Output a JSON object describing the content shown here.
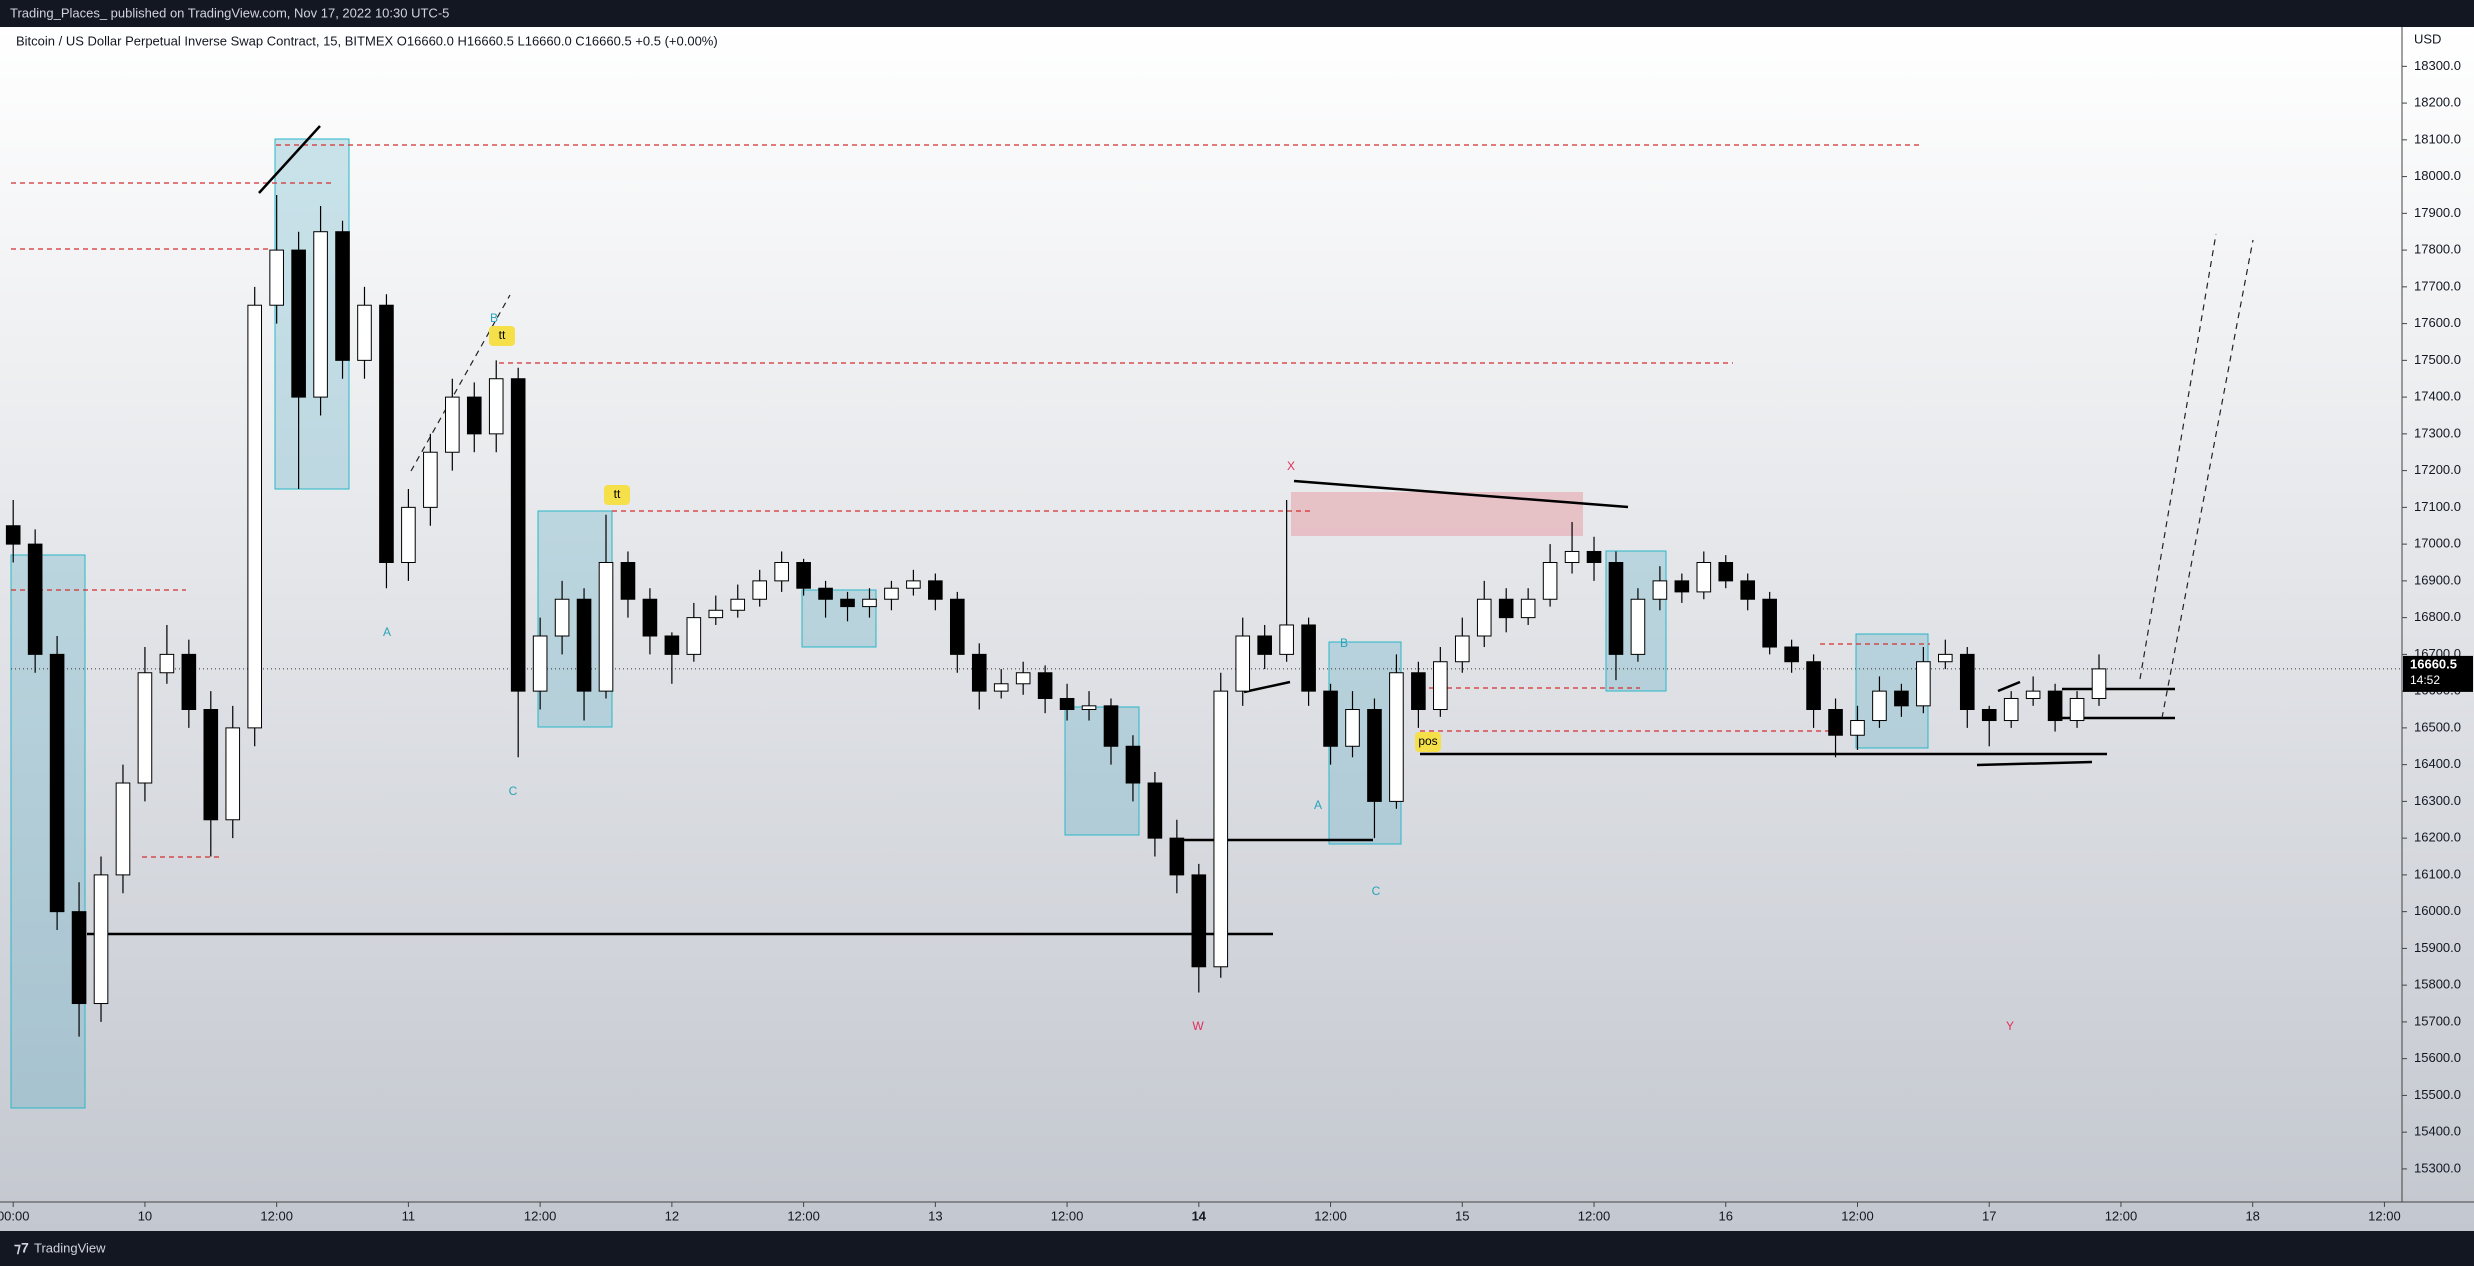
{
  "header": {
    "publisher": "Trading_Places_ published on TradingView.com, Nov 17, 2022 10:30 UTC-5"
  },
  "chart_data": {
    "type": "candlestick",
    "legend_text": "Bitcoin / US Dollar Perpetual Inverse Swap Contract, 15, BITMEX  O16660.0  H16660.5  L16660.0  C16660.5  +0.5 (+0.00%)",
    "currency": "USD",
    "last_price_label": "16660.5",
    "countdown": "14:52",
    "up_color": "#ffffff",
    "down_color": "#000000",
    "grid": false,
    "xlim": [
      -0.2,
      217.6
    ],
    "ylim": [
      15210,
      18407
    ],
    "xticks": [
      {
        "value": 0,
        "label": "00:00"
      },
      {
        "value": 12,
        "label": "10"
      },
      {
        "value": 24,
        "label": "12:00"
      },
      {
        "value": 36,
        "label": "11"
      },
      {
        "value": 48,
        "label": "12:00"
      },
      {
        "value": 60,
        "label": "12"
      },
      {
        "value": 72,
        "label": "12:00"
      },
      {
        "value": 84,
        "label": "13"
      },
      {
        "value": 96,
        "label": "12:00"
      },
      {
        "value": 108,
        "label": "14"
      },
      {
        "value": 120,
        "label": "12:00"
      },
      {
        "value": 132,
        "label": "15"
      },
      {
        "value": 144,
        "label": "12:00"
      },
      {
        "value": 156,
        "label": "16"
      },
      {
        "value": 168,
        "label": "12:00"
      },
      {
        "value": 180,
        "label": "17"
      },
      {
        "value": 192,
        "label": "12:00"
      },
      {
        "value": 204,
        "label": "18"
      },
      {
        "value": 216,
        "label": "12:00"
      }
    ],
    "yticks": [
      {
        "value": 15300,
        "label": "15300.0"
      },
      {
        "value": 15400,
        "label": "15400.0"
      },
      {
        "value": 15500,
        "label": "15500.0"
      },
      {
        "value": 15600,
        "label": "15600.0"
      },
      {
        "value": 15700,
        "label": "15700.0"
      },
      {
        "value": 15800,
        "label": "15800.0"
      },
      {
        "value": 15900,
        "label": "15900.0"
      },
      {
        "value": 16000,
        "label": "16000.0"
      },
      {
        "value": 16100,
        "label": "16100.0"
      },
      {
        "value": 16200,
        "label": "16200.0"
      },
      {
        "value": 16300,
        "label": "16300.0"
      },
      {
        "value": 16400,
        "label": "16400.0"
      },
      {
        "value": 16500,
        "label": "16500.0"
      },
      {
        "value": 16600,
        "label": "16600.0"
      },
      {
        "value": 16700,
        "label": "16700.0"
      },
      {
        "value": 16800,
        "label": "16800.0"
      },
      {
        "value": 16900,
        "label": "16900.0"
      },
      {
        "value": 17000,
        "label": "17000.0"
      },
      {
        "value": 17100,
        "label": "17100.0"
      },
      {
        "value": 17200,
        "label": "17200.0"
      },
      {
        "value": 17300,
        "label": "17300.0"
      },
      {
        "value": 17400,
        "label": "17400.0"
      },
      {
        "value": 17500,
        "label": "17500.0"
      },
      {
        "value": 17600,
        "label": "17600.0"
      },
      {
        "value": 17700,
        "label": "17700.0"
      },
      {
        "value": 17800,
        "label": "17800.0"
      },
      {
        "value": 17900,
        "label": "17900.0"
      },
      {
        "value": 18000,
        "label": "18000.0"
      },
      {
        "value": 18100,
        "label": "18100.0"
      },
      {
        "value": 18200,
        "label": "18200.0"
      },
      {
        "value": 18300,
        "label": "18300.0"
      }
    ],
    "x": [
      0,
      2,
      4,
      6,
      8,
      10,
      12,
      14,
      16,
      18,
      20,
      22,
      24,
      26,
      28,
      30,
      32,
      34,
      36,
      38,
      40,
      42,
      44,
      46,
      48,
      50,
      52,
      54,
      56,
      58,
      60,
      62,
      64,
      66,
      68,
      70,
      72,
      74,
      76,
      78,
      80,
      82,
      84,
      86,
      88,
      90,
      92,
      94,
      96,
      98,
      100,
      102,
      104,
      106,
      108,
      110,
      112,
      114,
      116,
      118,
      120,
      122,
      124,
      126,
      128,
      130,
      132,
      134,
      136,
      138,
      140,
      142,
      144,
      146,
      148,
      150,
      152,
      154,
      156,
      158,
      160,
      162,
      164,
      166,
      168,
      170,
      172,
      174,
      176,
      178,
      180,
      182,
      184,
      186,
      188,
      190
    ],
    "candles": [
      [
        17050,
        17120,
        16950,
        17000
      ],
      [
        17000,
        17040,
        16650,
        16700
      ],
      [
        16700,
        16750,
        15950,
        16000
      ],
      [
        16000,
        16080,
        15660,
        15750
      ],
      [
        15750,
        16150,
        15700,
        16100
      ],
      [
        16100,
        16400,
        16050,
        16350
      ],
      [
        16350,
        16720,
        16300,
        16650
      ],
      [
        16650,
        16780,
        16620,
        16700
      ],
      [
        16700,
        16740,
        16500,
        16550
      ],
      [
        16550,
        16600,
        16150,
        16250
      ],
      [
        16250,
        16560,
        16200,
        16500
      ],
      [
        16500,
        17700,
        16450,
        17650
      ],
      [
        17650,
        17950,
        17600,
        17800
      ],
      [
        17800,
        17850,
        17150,
        17400
      ],
      [
        17400,
        17920,
        17350,
        17850
      ],
      [
        17850,
        17880,
        17450,
        17500
      ],
      [
        17500,
        17700,
        17450,
        17650
      ],
      [
        17650,
        17680,
        16880,
        16950
      ],
      [
        16950,
        17150,
        16900,
        17100
      ],
      [
        17100,
        17300,
        17050,
        17250
      ],
      [
        17250,
        17450,
        17200,
        17400
      ],
      [
        17400,
        17440,
        17250,
        17300
      ],
      [
        17300,
        17500,
        17250,
        17450
      ],
      [
        17450,
        17480,
        16420,
        16600
      ],
      [
        16600,
        16800,
        16550,
        16750
      ],
      [
        16750,
        16900,
        16700,
        16850
      ],
      [
        16850,
        16880,
        16520,
        16600
      ],
      [
        16600,
        17080,
        16580,
        16950
      ],
      [
        16950,
        16980,
        16800,
        16850
      ],
      [
        16850,
        16880,
        16700,
        16750
      ],
      [
        16750,
        16760,
        16620,
        16700
      ],
      [
        16700,
        16840,
        16680,
        16800
      ],
      [
        16800,
        16860,
        16780,
        16820
      ],
      [
        16820,
        16890,
        16800,
        16850
      ],
      [
        16850,
        16930,
        16830,
        16900
      ],
      [
        16900,
        16980,
        16870,
        16950
      ],
      [
        16950,
        16960,
        16860,
        16880
      ],
      [
        16880,
        16900,
        16800,
        16850
      ],
      [
        16850,
        16870,
        16790,
        16830
      ],
      [
        16830,
        16880,
        16800,
        16850
      ],
      [
        16850,
        16900,
        16820,
        16880
      ],
      [
        16880,
        16930,
        16860,
        16900
      ],
      [
        16900,
        16920,
        16820,
        16850
      ],
      [
        16850,
        16870,
        16650,
        16700
      ],
      [
        16700,
        16730,
        16550,
        16600
      ],
      [
        16600,
        16660,
        16580,
        16620
      ],
      [
        16620,
        16680,
        16590,
        16650
      ],
      [
        16650,
        16670,
        16540,
        16580
      ],
      [
        16580,
        16620,
        16520,
        16550
      ],
      [
        16550,
        16600,
        16520,
        16560
      ],
      [
        16560,
        16580,
        16400,
        16450
      ],
      [
        16450,
        16480,
        16300,
        16350
      ],
      [
        16350,
        16380,
        16150,
        16200
      ],
      [
        16200,
        16250,
        16050,
        16100
      ],
      [
        16100,
        16130,
        15780,
        15850
      ],
      [
        15850,
        16650,
        15820,
        16600
      ],
      [
        16600,
        16800,
        16560,
        16750
      ],
      [
        16750,
        16780,
        16660,
        16700
      ],
      [
        16700,
        17120,
        16680,
        16780
      ],
      [
        16780,
        16800,
        16560,
        16600
      ],
      [
        16600,
        16620,
        16400,
        16450
      ],
      [
        16450,
        16600,
        16420,
        16550
      ],
      [
        16550,
        16580,
        16200,
        16300
      ],
      [
        16300,
        16700,
        16280,
        16650
      ],
      [
        16650,
        16680,
        16500,
        16550
      ],
      [
        16550,
        16720,
        16530,
        16680
      ],
      [
        16680,
        16800,
        16650,
        16750
      ],
      [
        16750,
        16900,
        16720,
        16850
      ],
      [
        16850,
        16880,
        16760,
        16800
      ],
      [
        16800,
        16880,
        16780,
        16850
      ],
      [
        16850,
        17000,
        16830,
        16950
      ],
      [
        16950,
        17060,
        16920,
        16980
      ],
      [
        16980,
        17020,
        16900,
        16950
      ],
      [
        16950,
        16980,
        16630,
        16700
      ],
      [
        16700,
        16880,
        16680,
        16850
      ],
      [
        16850,
        16940,
        16820,
        16900
      ],
      [
        16900,
        16920,
        16840,
        16870
      ],
      [
        16870,
        16980,
        16850,
        16950
      ],
      [
        16950,
        16970,
        16880,
        16900
      ],
      [
        16900,
        16920,
        16820,
        16850
      ],
      [
        16850,
        16870,
        16700,
        16720
      ],
      [
        16720,
        16740,
        16650,
        16680
      ],
      [
        16680,
        16700,
        16500,
        16550
      ],
      [
        16550,
        16580,
        16420,
        16480
      ],
      [
        16480,
        16560,
        16440,
        16520
      ],
      [
        16520,
        16640,
        16500,
        16600
      ],
      [
        16600,
        16620,
        16530,
        16560
      ],
      [
        16560,
        16720,
        16540,
        16680
      ],
      [
        16680,
        16740,
        16660,
        16700
      ],
      [
        16700,
        16720,
        16500,
        16550
      ],
      [
        16550,
        16560,
        16450,
        16520
      ],
      [
        16520,
        16600,
        16500,
        16580
      ],
      [
        16580,
        16640,
        16560,
        16600
      ],
      [
        16600,
        16620,
        16490,
        16520
      ],
      [
        16520,
        16600,
        16500,
        16580
      ],
      [
        16580,
        16700,
        16560,
        16660.5
      ]
    ],
    "annotations": [
      "tt",
      "tt",
      "pos",
      "A",
      "B",
      "C",
      "A",
      "B",
      "C",
      "X",
      "W",
      "Y"
    ]
  },
  "footer": {
    "brand": "TradingView"
  }
}
